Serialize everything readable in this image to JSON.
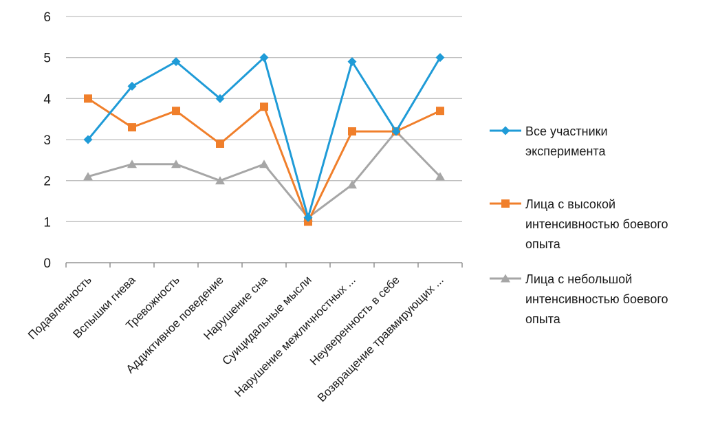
{
  "chart_data": {
    "type": "line",
    "categories": [
      "Подавленность",
      "Вспышки гнева",
      "Тревожность",
      "Аддиктивное поведение",
      "Нарушение сна",
      "Суицидальные мысли",
      "Нарушение межличностных ...",
      "Неуверенность в себе",
      "Возвращение травмирующих ..."
    ],
    "series": [
      {
        "name": "Все участники эксперимента",
        "name_lines": [
          "Все участники",
          "эксперимента"
        ],
        "color": "#1f9bd7",
        "marker": "diamond",
        "values": [
          3.0,
          4.3,
          4.9,
          4.0,
          5.0,
          1.1,
          4.9,
          3.2,
          5.0
        ]
      },
      {
        "name": "Лица с высокой интенсивностью боевого опыта",
        "name_lines": [
          "Лица с высокой",
          "интенсивностью  боевого",
          "опыта"
        ],
        "color": "#f07f2b",
        "marker": "square",
        "values": [
          4.0,
          3.3,
          3.7,
          2.9,
          3.8,
          1.0,
          3.2,
          3.2,
          3.7
        ]
      },
      {
        "name": "Лица с небольшой интенсивностью боевого опыта",
        "name_lines": [
          "Лица с небольшой",
          "интенсивностью  боевого",
          "опыта"
        ],
        "color": "#a6a6a6",
        "marker": "triangle",
        "values": [
          2.1,
          2.4,
          2.4,
          2.0,
          2.4,
          1.1,
          1.9,
          3.2,
          2.1
        ]
      }
    ],
    "yticks": [
      "0",
      "1",
      "2",
      "3",
      "4",
      "5",
      "6"
    ],
    "ylim": [
      0,
      6
    ],
    "grid": true,
    "legend": "right",
    "colors": {
      "grid": "#bfbfbf",
      "axis": "#7f7f7f",
      "text": "#1a1a1a"
    }
  }
}
